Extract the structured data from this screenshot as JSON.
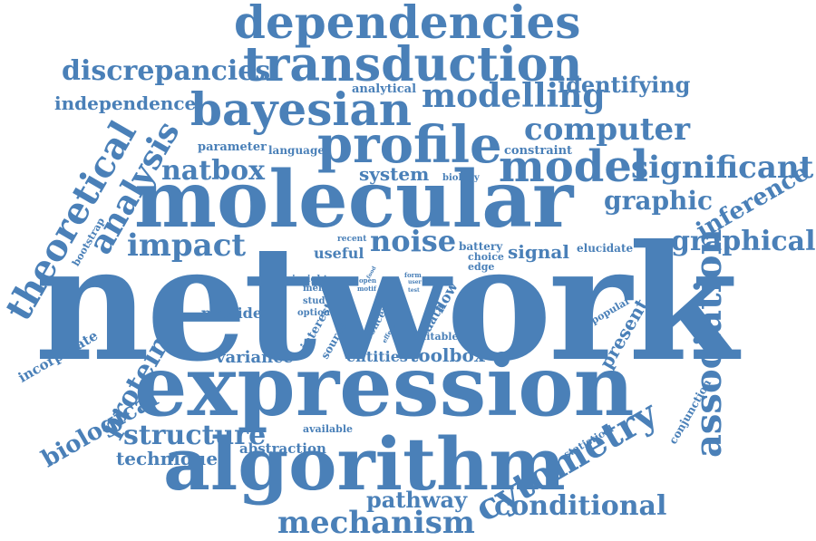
{
  "accent": "#4a80b8",
  "words": {
    "network": "network",
    "expression": "expression",
    "molecular": "molecular",
    "algorithm": "algorithm",
    "profile": "profile",
    "bayesian": "bayesian",
    "dependencies": "dependencies",
    "transduction": "transduction",
    "model": "model",
    "mechanism": "mechanism",
    "modelling": "modelling",
    "discrepancies": "discrepancies",
    "computer": "computer",
    "significant": "significant",
    "association": "association",
    "theoretical": "theoretical",
    "analysis": "analysis",
    "cytometry": "cytometry",
    "conditional": "conditional",
    "structure": "structure",
    "impact": "impact",
    "natbox": "natbox",
    "graphical": "graphical",
    "noise": "noise",
    "protein": "protein",
    "biological": "biological",
    "graphic": "graphic",
    "inference": "inference",
    "identifying": "identifying",
    "independence": "independence",
    "pathway": "pathway",
    "technique": "technique",
    "system": "system",
    "signal": "signal",
    "toolbox": "toolbox",
    "variance": "variance",
    "abstraction": "abstraction",
    "useful": "useful",
    "provide": "provide",
    "entities": "entities",
    "present": "present",
    "incorporate": "incorporate",
    "parameter": "parameter",
    "language": "language",
    "constraint": "constraint",
    "analytical": "analytical",
    "biology": "biology",
    "bootstrap": "bootstrap",
    "elucidate": "elucidate",
    "battery": "battery",
    "choice": "choice",
    "edge": "edge",
    "recent": "recent",
    "menu": "menu",
    "insight": "insight",
    "study": "study",
    "option": "option",
    "interest": "interest",
    "source": "source",
    "concert": "concert",
    "data": "data",
    "flow": "flow",
    "suitable": "suitable",
    "available": "available",
    "popular": "popular",
    "statistical": "statistical",
    "conjunction": "conjunction",
    "open": "open",
    "motif": "motif",
    "form": "form",
    "user": "user",
    "test": "test",
    "effect": "effect",
    "food": "food"
  }
}
